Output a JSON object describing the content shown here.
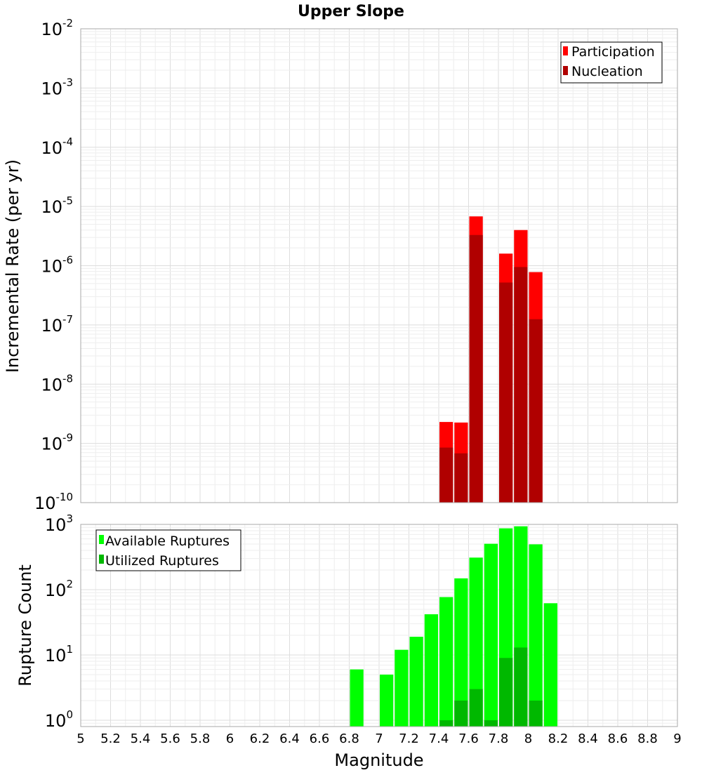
{
  "title": "Upper Slope",
  "x_tick_labels": [
    "5",
    "5.2",
    "5.4",
    "5.6",
    "5.8",
    "6",
    "6.2",
    "6.4",
    "6.6",
    "6.8",
    "7",
    "7.2",
    "7.4",
    "7.6",
    "7.8",
    "8",
    "8.2",
    "8.4",
    "8.6",
    "8.8",
    "9"
  ],
  "colors": {
    "participation": "#ff0000",
    "nucleation": "#b00000",
    "available": "#00ff00",
    "utilized": "#00b800",
    "grid_major": "#dddddd",
    "grid_minor": "#eeeeee",
    "frame": "#aaaaaa"
  },
  "chart_data": [
    {
      "type": "bar",
      "title": "Upper Slope",
      "xlabel": "",
      "ylabel": "Incremental Rate (per yr)",
      "xlim": [
        5,
        9
      ],
      "ylim": [
        1e-10,
        0.01
      ],
      "yscale": "log",
      "y_tick_labels": [
        {
          "base": "10",
          "exp": "-2"
        },
        {
          "base": "10",
          "exp": "-3"
        },
        {
          "base": "10",
          "exp": "-4"
        },
        {
          "base": "10",
          "exp": "-5"
        },
        {
          "base": "10",
          "exp": "-6"
        },
        {
          "base": "10",
          "exp": "-7"
        },
        {
          "base": "10",
          "exp": "-8"
        },
        {
          "base": "10",
          "exp": "-9"
        },
        {
          "base": "10",
          "exp": "-10"
        }
      ],
      "grid": true,
      "legend_position": "top-right",
      "series": [
        {
          "name": "Participation",
          "x": [
            7.45,
            7.55,
            7.65,
            7.85,
            7.95,
            8.05
          ],
          "values": [
            2.3e-09,
            2.25e-09,
            6.8e-06,
            1.6e-06,
            4e-06,
            7.8e-07
          ]
        },
        {
          "name": "Nucleation",
          "x": [
            7.45,
            7.55,
            7.65,
            7.85,
            7.95,
            8.05
          ],
          "values": [
            8.5e-10,
            6.8e-10,
            3.3e-06,
            5.2e-07,
            9.5e-07,
            1.25e-07
          ]
        }
      ]
    },
    {
      "type": "bar",
      "xlabel": "Magnitude",
      "ylabel": "Rupture Count",
      "xlim": [
        5,
        9
      ],
      "ylim": [
        0.8,
        1000
      ],
      "yscale": "log",
      "y_tick_labels": [
        {
          "base": "10",
          "exp": "3"
        },
        {
          "base": "10",
          "exp": "2"
        },
        {
          "base": "10",
          "exp": "1"
        },
        {
          "base": "10",
          "exp": "0"
        }
      ],
      "grid": true,
      "legend_position": "top-left",
      "series": [
        {
          "name": "Available Ruptures",
          "x": [
            6.85,
            7.05,
            7.15,
            7.25,
            7.35,
            7.45,
            7.55,
            7.65,
            7.75,
            7.85,
            7.95,
            8.05,
            8.15
          ],
          "values": [
            6,
            5,
            12,
            19,
            42,
            77,
            149,
            310,
            505,
            870,
            935,
            495,
            62
          ]
        },
        {
          "name": "Utilized Ruptures",
          "x": [
            7.45,
            7.55,
            7.65,
            7.75,
            7.85,
            7.95,
            8.05
          ],
          "values": [
            1,
            2,
            3,
            1,
            9,
            13,
            2
          ]
        }
      ]
    }
  ]
}
